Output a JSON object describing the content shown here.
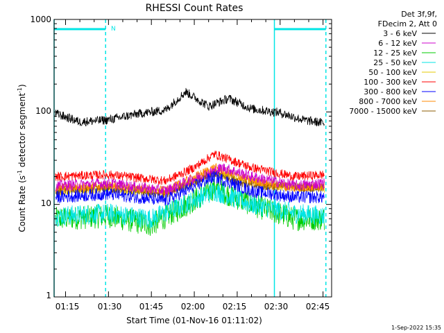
{
  "chart_data": {
    "type": "line",
    "title": "RHESSI Count Rates",
    "xlabel": "Start Time (01-Nov-16 01:11:02)",
    "ylabel_main": "Count Rate (s",
    "ylabel_sup1": "-1",
    "ylabel_mid": " detector segment",
    "ylabel_sup2": "-1",
    "ylabel_end": ")",
    "yscale": "log",
    "ylim": [
      1,
      1000
    ],
    "xlim_minutes": [
      "01:11",
      "02:48"
    ],
    "x_ticks": [
      "01:15",
      "01:30",
      "01:45",
      "02:00",
      "02:15",
      "02:30",
      "02:45"
    ],
    "y_ticks": [
      "1",
      "10",
      "100",
      "1000"
    ],
    "legend_header": [
      "Det 3f,9f,",
      "FDecim 2, Att 0"
    ],
    "legend_position": "right",
    "annotation_label": "N",
    "night_intervals": [
      [
        "01:11",
        "01:29"
      ],
      [
        "02:28",
        "02:46"
      ]
    ],
    "vertical_markers": [
      "01:11",
      "01:29",
      "02:28",
      "02:46"
    ],
    "series": [
      {
        "name": "3 - 6 keV",
        "color": "#000000",
        "x": [
          "01:12",
          "01:20",
          "01:30",
          "01:40",
          "01:50",
          "01:57",
          "02:05",
          "02:12",
          "02:20",
          "02:30",
          "02:38",
          "02:46"
        ],
        "values": [
          95,
          78,
          82,
          95,
          105,
          165,
          115,
          140,
          108,
          98,
          82,
          75
        ]
      },
      {
        "name": "6 - 12 keV",
        "color": "#cc00cc",
        "x": [
          "01:12",
          "01:30",
          "01:50",
          "02:00",
          "02:10",
          "02:20",
          "02:35",
          "02:46"
        ],
        "values": [
          16,
          17,
          14,
          19,
          25,
          20,
          16,
          17
        ]
      },
      {
        "name": "12 - 25 keV",
        "color": "#00cc00",
        "x": [
          "01:12",
          "01:30",
          "01:45",
          "01:55",
          "02:07",
          "02:20",
          "02:35",
          "02:46"
        ],
        "values": [
          7,
          7.5,
          6,
          9,
          15,
          10,
          7,
          7
        ]
      },
      {
        "name": "25 - 50 keV",
        "color": "#00e5e5",
        "x": [
          "01:12",
          "01:30",
          "01:45",
          "01:55",
          "02:07",
          "02:20",
          "02:35",
          "02:46"
        ],
        "values": [
          7.5,
          8,
          7,
          9.5,
          14,
          10,
          8,
          7.5
        ]
      },
      {
        "name": "50 - 100 keV",
        "color": "#e6c800",
        "x": [
          "01:12",
          "01:30",
          "01:50",
          "02:07",
          "02:25",
          "02:46"
        ],
        "values": [
          14,
          15,
          13,
          22,
          16,
          15
        ]
      },
      {
        "name": "100 - 300 keV",
        "color": "#ff0000",
        "x": [
          "01:12",
          "01:30",
          "01:50",
          "02:00",
          "02:07",
          "02:20",
          "02:35",
          "02:46"
        ],
        "values": [
          20,
          21,
          18,
          25,
          35,
          25,
          20,
          21
        ]
      },
      {
        "name": "300 - 800 keV",
        "color": "#0000ff",
        "x": [
          "01:12",
          "01:30",
          "01:50",
          "02:07",
          "02:20",
          "02:35",
          "02:46"
        ],
        "values": [
          12,
          13,
          11,
          20,
          14,
          12,
          12
        ]
      },
      {
        "name": "800 - 7000 keV",
        "color": "#ff8800",
        "x": [
          "01:12",
          "01:30",
          "01:50",
          "02:07",
          "02:20",
          "02:35",
          "02:46"
        ],
        "values": [
          15,
          16,
          14,
          25,
          18,
          15,
          16
        ]
      },
      {
        "name": "7000 - 15000 keV",
        "color": "#8b5a00",
        "x": [
          "01:12",
          "01:30",
          "01:50",
          "02:07",
          "02:20",
          "02:46"
        ],
        "values": [
          14,
          15,
          13,
          22,
          16,
          15
        ]
      }
    ]
  },
  "footer_timestamp": "1-Sep-2022 15:35",
  "colors": {
    "background": "#ffffff",
    "axes": "#000000",
    "marker": "#00e5e5"
  }
}
